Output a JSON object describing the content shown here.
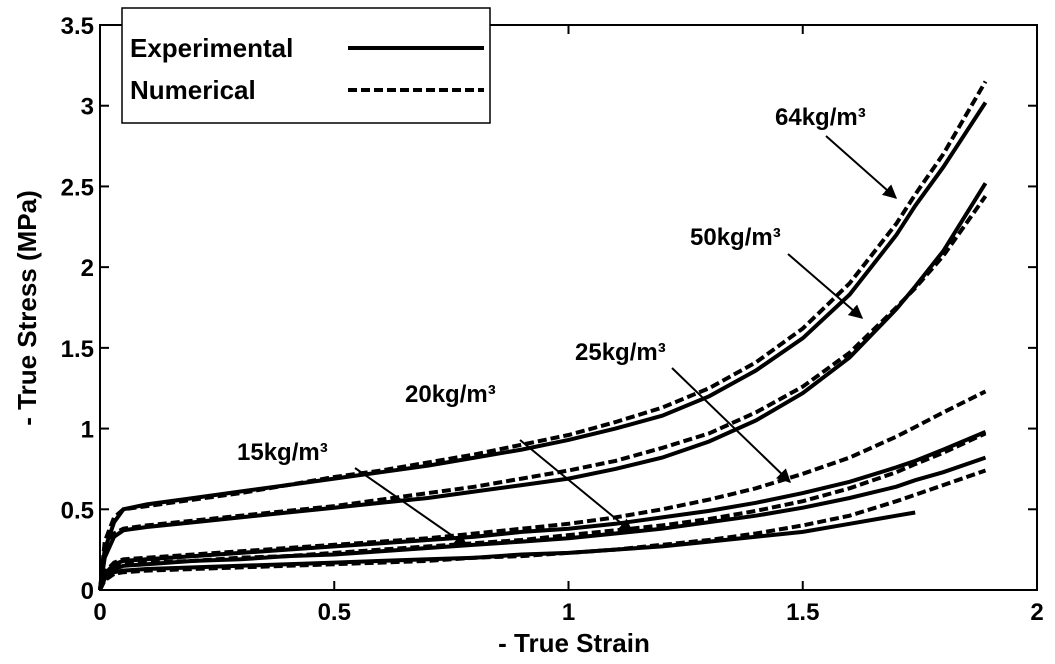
{
  "chart_data": {
    "type": "line",
    "xlabel": "- True Strain",
    "ylabel": "- True Stress (MPa)",
    "xlim": [
      0,
      2
    ],
    "ylim": [
      0,
      3.5
    ],
    "xticks": [
      0,
      0.5,
      1,
      1.5,
      2
    ],
    "yticks": [
      0,
      0.5,
      1,
      1.5,
      2,
      2.5,
      3,
      3.5
    ],
    "grid": false,
    "legend_position": "upper-left",
    "x": [
      0,
      0.01,
      0.03,
      0.05,
      0.1,
      0.2,
      0.3,
      0.4,
      0.5,
      0.6,
      0.7,
      0.8,
      0.9,
      1.0,
      1.1,
      1.2,
      1.3,
      1.4,
      1.5,
      1.6,
      1.7,
      1.74,
      1.8,
      1.89
    ],
    "annotations": [
      "15kg/m³",
      "20kg/m³",
      "25kg/m³",
      "50kg/m³",
      "64kg/m³"
    ],
    "series": [
      {
        "name": "Experimental",
        "color": "#000000",
        "dashed": false,
        "curves": [
          [
            0,
            0.07,
            0.11,
            0.12,
            0.13,
            0.14,
            0.15,
            0.16,
            0.17,
            0.18,
            0.19,
            0.2,
            0.22,
            0.23,
            0.25,
            0.27,
            0.3,
            0.33,
            0.36,
            0.41,
            0.46,
            0.48,
            null,
            null
          ],
          [
            0,
            0.08,
            0.13,
            0.15,
            0.16,
            0.18,
            0.19,
            0.21,
            0.22,
            0.24,
            0.26,
            0.28,
            0.3,
            0.32,
            0.35,
            0.38,
            0.42,
            0.46,
            0.51,
            0.57,
            0.64,
            0.68,
            0.73,
            0.82
          ],
          [
            0,
            0.1,
            0.16,
            0.18,
            0.19,
            0.21,
            0.23,
            0.25,
            0.27,
            0.29,
            0.31,
            0.33,
            0.36,
            0.38,
            0.41,
            0.45,
            0.49,
            0.54,
            0.6,
            0.67,
            0.76,
            0.8,
            0.87,
            0.98
          ],
          [
            0,
            0.2,
            0.33,
            0.37,
            0.39,
            0.42,
            0.45,
            0.48,
            0.51,
            0.54,
            0.57,
            0.61,
            0.65,
            0.69,
            0.75,
            0.82,
            0.92,
            1.05,
            1.22,
            1.44,
            1.74,
            1.88,
            2.1,
            2.52
          ],
          [
            0,
            0.25,
            0.42,
            0.5,
            0.53,
            0.57,
            0.61,
            0.65,
            0.69,
            0.73,
            0.77,
            0.82,
            0.87,
            0.93,
            1.0,
            1.08,
            1.2,
            1.36,
            1.56,
            1.83,
            2.2,
            2.38,
            2.62,
            3.02
          ]
        ]
      },
      {
        "name": "Numerical",
        "color": "#000000",
        "dashed": true,
        "curves": [
          [
            0,
            0.06,
            0.1,
            0.11,
            0.12,
            0.13,
            0.14,
            0.15,
            0.16,
            0.17,
            0.18,
            0.2,
            0.21,
            0.23,
            0.25,
            0.28,
            0.31,
            0.35,
            0.4,
            0.46,
            0.55,
            0.59,
            0.65,
            0.74
          ],
          [
            0,
            0.09,
            0.14,
            0.16,
            0.17,
            0.18,
            0.2,
            0.21,
            0.23,
            0.25,
            0.27,
            0.29,
            0.31,
            0.34,
            0.37,
            0.4,
            0.44,
            0.49,
            0.55,
            0.63,
            0.73,
            0.78,
            0.85,
            0.97
          ],
          [
            0,
            0.11,
            0.17,
            0.19,
            0.2,
            0.22,
            0.24,
            0.26,
            0.28,
            0.3,
            0.32,
            0.35,
            0.38,
            0.41,
            0.45,
            0.5,
            0.56,
            0.63,
            0.72,
            0.82,
            0.95,
            1.01,
            1.1,
            1.23
          ],
          [
            0,
            0.22,
            0.35,
            0.38,
            0.4,
            0.43,
            0.46,
            0.49,
            0.52,
            0.56,
            0.6,
            0.64,
            0.69,
            0.74,
            0.8,
            0.88,
            0.97,
            1.1,
            1.26,
            1.47,
            1.75,
            1.87,
            2.07,
            2.44
          ],
          [
            0,
            0.3,
            0.45,
            0.5,
            0.52,
            0.56,
            0.6,
            0.65,
            0.7,
            0.74,
            0.79,
            0.84,
            0.9,
            0.96,
            1.04,
            1.13,
            1.25,
            1.41,
            1.62,
            1.9,
            2.27,
            2.45,
            2.7,
            3.15
          ]
        ]
      }
    ]
  }
}
